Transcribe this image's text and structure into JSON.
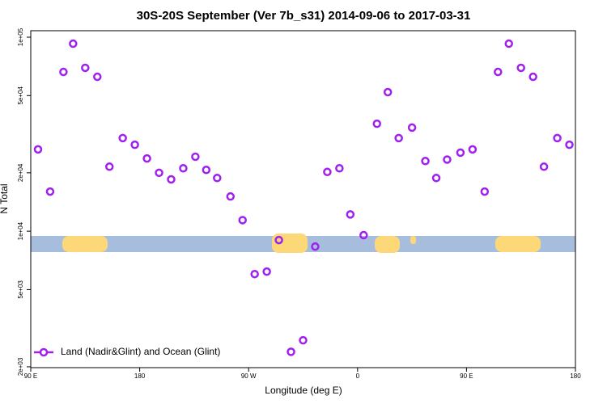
{
  "chart_data": {
    "type": "scatter",
    "title": "30S-20S September (Ver 7b_s31)   2014-09-06 to 2017-03-31",
    "xlabel": "Longitude (deg E)",
    "ylabel": "N Total",
    "log_y": true,
    "xlim": [
      90,
      540
    ],
    "xticks": [
      {
        "value": 90,
        "label": "90 E"
      },
      {
        "value": 180,
        "label": "180"
      },
      {
        "value": 270,
        "label": "90 W"
      },
      {
        "value": 360,
        "label": "0"
      },
      {
        "value": 450,
        "label": "90 E"
      },
      {
        "value": 540,
        "label": "180"
      }
    ],
    "ylim": [
      1980,
      108000
    ],
    "yticks": [
      {
        "value": 2000,
        "label": "2e+03"
      },
      {
        "value": 5000,
        "label": "5e+03"
      },
      {
        "value": 10000,
        "label": "1e+04"
      },
      {
        "value": 20000,
        "label": "2e+04"
      },
      {
        "value": 50000,
        "label": "5e+04"
      },
      {
        "value": 100000,
        "label": "1e+05"
      }
    ],
    "legend": "bottom-left",
    "series": [
      {
        "name": "Land (Nadir&Glint) and Ocean (Glint)",
        "color": "#a020f0",
        "x": [
          96,
          106,
          117,
          125,
          135,
          145,
          155,
          166,
          176,
          186,
          196,
          206,
          216,
          226,
          235,
          244,
          255,
          265,
          275,
          285,
          295,
          305,
          315,
          325,
          335,
          345,
          354,
          365,
          376,
          385,
          394,
          405,
          416,
          425,
          434,
          445,
          455,
          465,
          476,
          485,
          495,
          505,
          514,
          525,
          535
        ],
        "values": [
          26400,
          16000,
          66200,
          92600,
          69500,
          62500,
          21500,
          30200,
          27900,
          23700,
          20000,
          18500,
          21100,
          24200,
          20700,
          18800,
          15100,
          11400,
          6010,
          6190,
          9000,
          2390,
          2740,
          8330,
          20200,
          21100,
          12200,
          9540,
          35800,
          52100,
          30200,
          34200,
          23000,
          18800,
          23400,
          25400,
          26400,
          16000,
          66200,
          92600,
          69500,
          62500,
          21500,
          30200,
          27900
        ]
      }
    ]
  }
}
